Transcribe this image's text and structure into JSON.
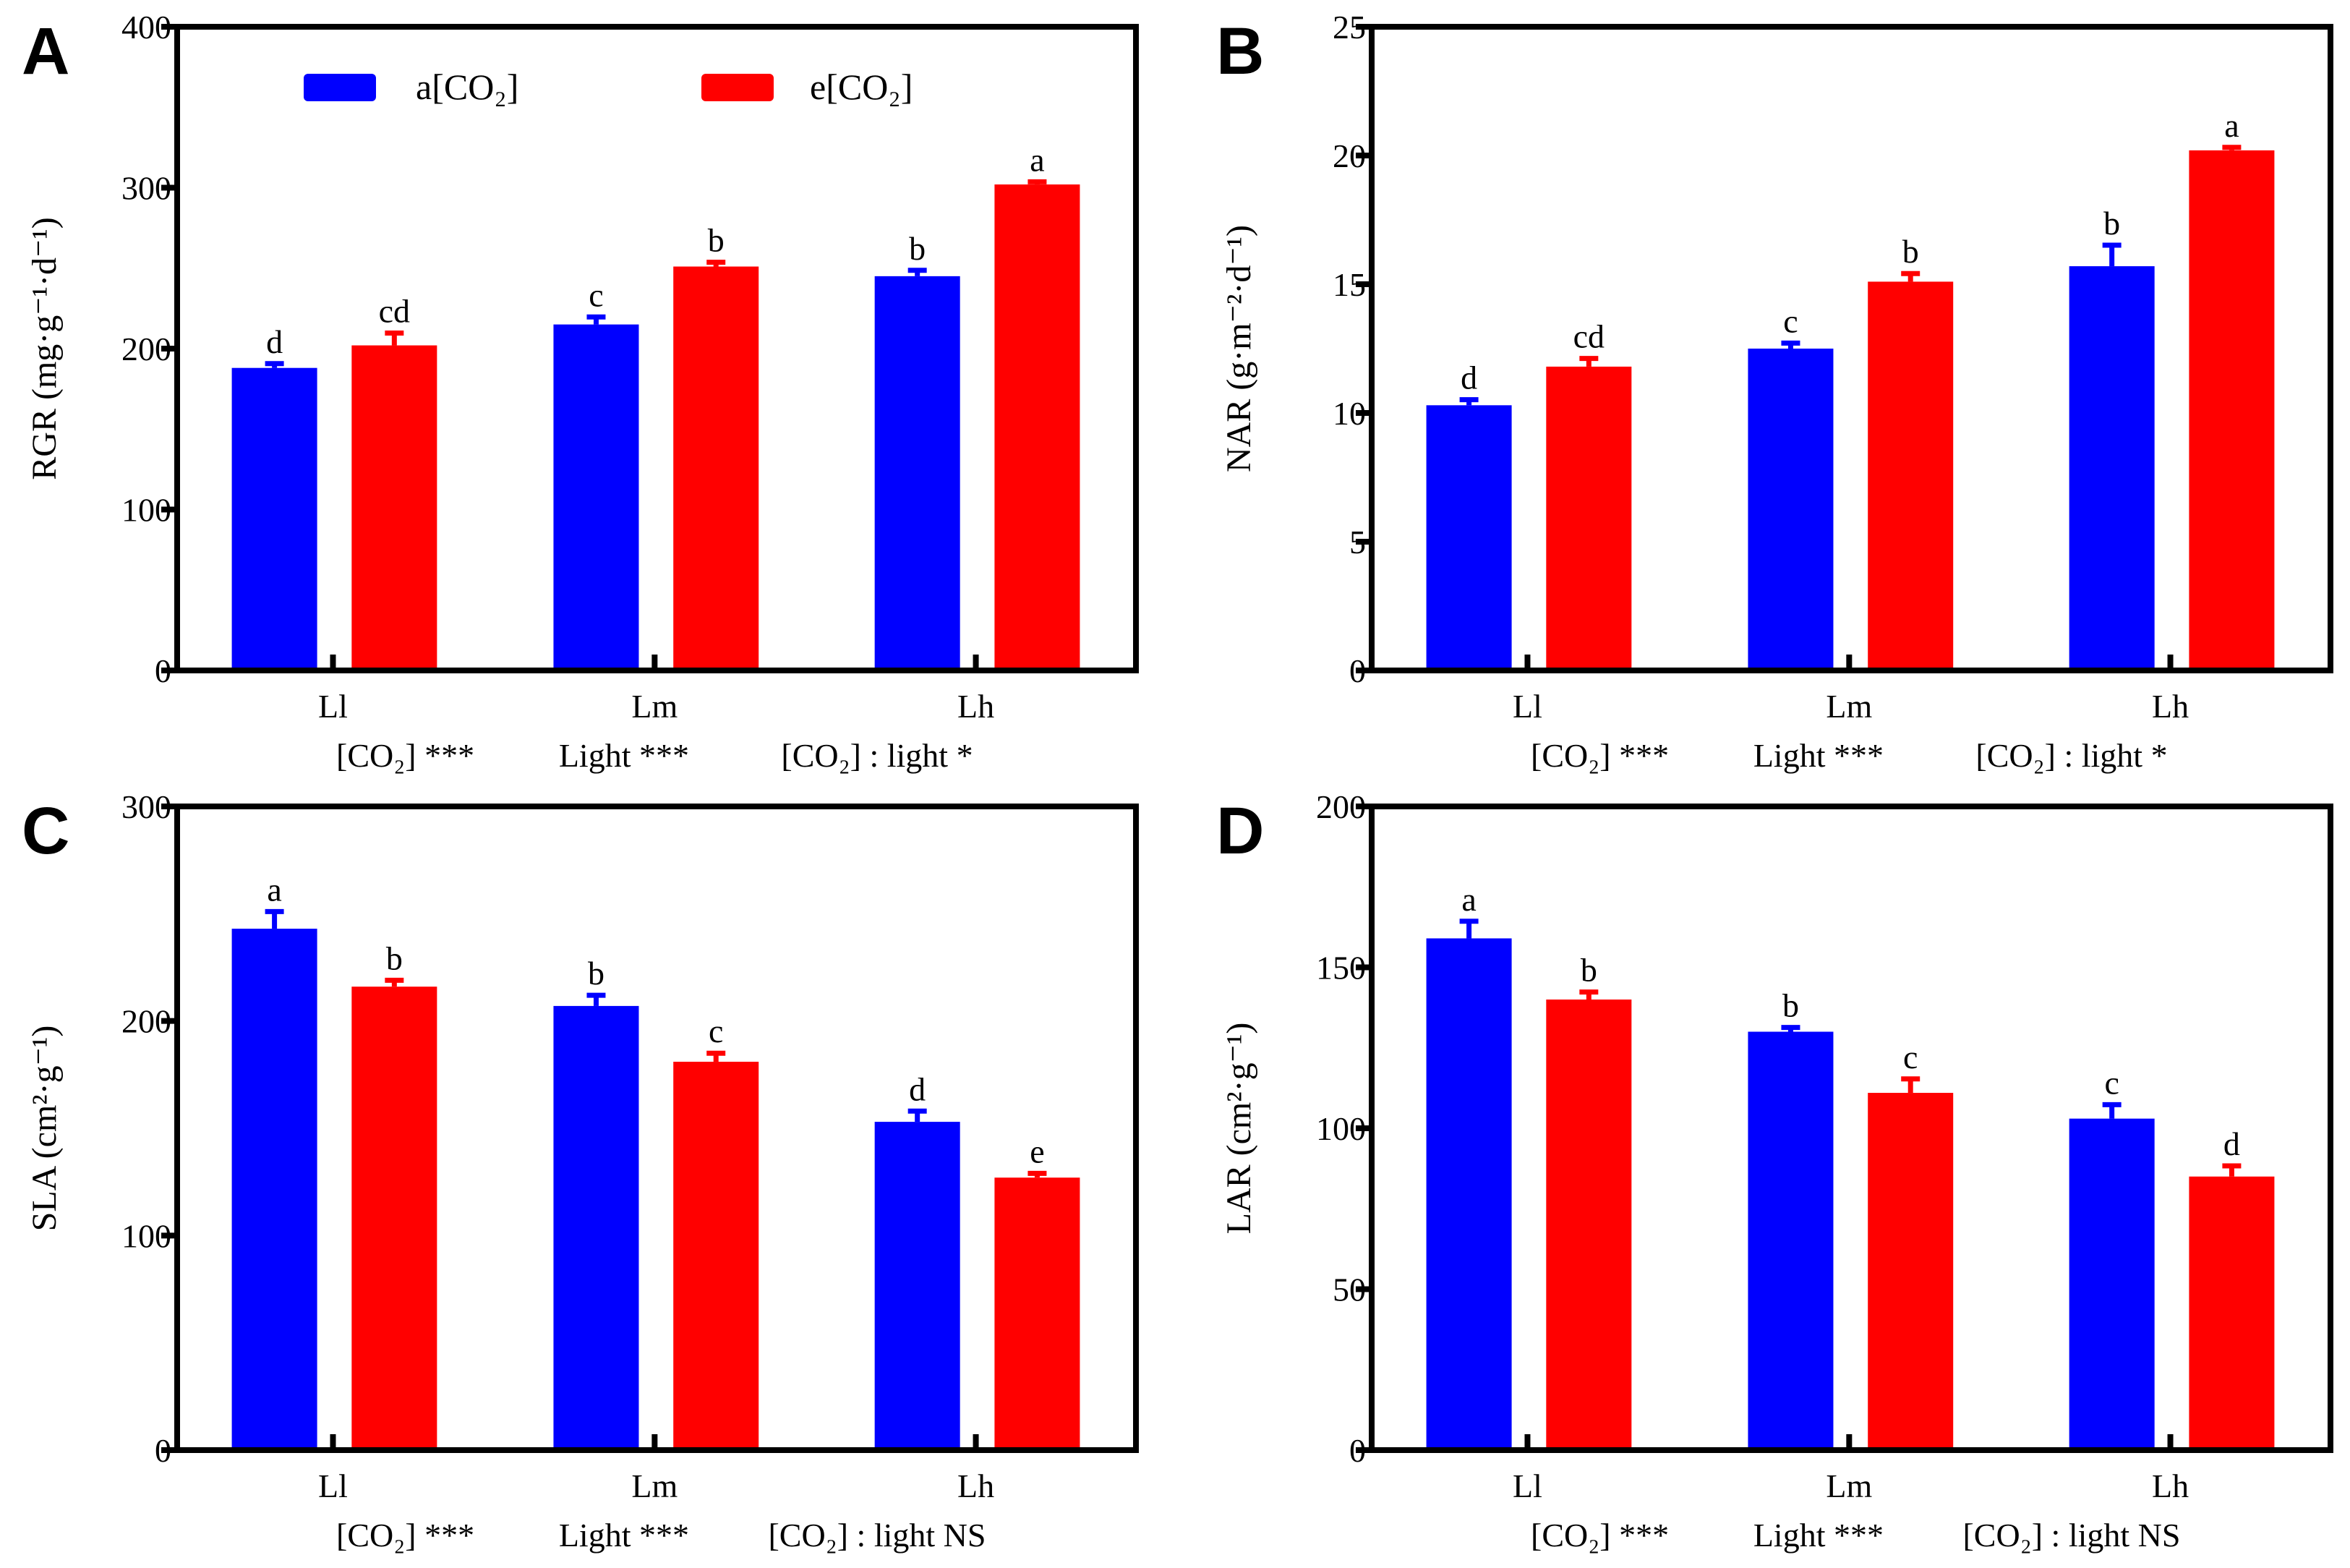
{
  "colors": {
    "ambient": "#0000ff",
    "elevated": "#ff0000",
    "axis": "#000000"
  },
  "legend": [
    {
      "label": "a[CO₂]",
      "color": "#0000ff"
    },
    {
      "label": "e[CO₂]",
      "color": "#ff0000"
    }
  ],
  "chart_data": [
    {
      "type": "bar",
      "panel": "A",
      "ylabel": "RGR (mg·g⁻¹·d⁻¹)",
      "categories": [
        "Ll",
        "Lm",
        "Lh"
      ],
      "ylim": [
        0,
        400
      ],
      "yticks": [
        0,
        100,
        200,
        300,
        400
      ],
      "series": [
        {
          "name": "a[CO₂]",
          "values": [
            188,
            215,
            245
          ],
          "errors": [
            4,
            6,
            5
          ],
          "letters": [
            "d",
            "c",
            "b"
          ]
        },
        {
          "name": "e[CO₂]",
          "values": [
            202,
            251,
            302
          ],
          "errors": [
            9,
            4,
            3
          ],
          "letters": [
            "cd",
            "b",
            "a"
          ]
        }
      ],
      "stats": [
        "[CO₂] ***",
        "Light ***",
        "[CO₂] : light *"
      ]
    },
    {
      "type": "bar",
      "panel": "B",
      "ylabel": "NAR (g·m⁻²·d⁻¹)",
      "categories": [
        "Ll",
        "Lm",
        "Lh"
      ],
      "ylim": [
        0,
        25
      ],
      "yticks": [
        0,
        5,
        10,
        15,
        20,
        25
      ],
      "series": [
        {
          "name": "a[CO₂]",
          "values": [
            10.3,
            12.5,
            15.7
          ],
          "errors": [
            0.3,
            0.3,
            0.9
          ],
          "letters": [
            "d",
            "c",
            "b"
          ]
        },
        {
          "name": "e[CO₂]",
          "values": [
            11.8,
            15.1,
            20.2
          ],
          "errors": [
            0.4,
            0.4,
            0.2
          ],
          "letters": [
            "cd",
            "b",
            "a"
          ]
        }
      ],
      "stats": [
        "[CO₂] ***",
        "Light ***",
        "[CO₂] : light *"
      ]
    },
    {
      "type": "bar",
      "panel": "C",
      "ylabel": "SLA (cm²·g⁻¹)",
      "categories": [
        "Ll",
        "Lm",
        "Lh"
      ],
      "ylim": [
        0,
        300
      ],
      "yticks": [
        0,
        100,
        200,
        300
      ],
      "series": [
        {
          "name": "a[CO₂]",
          "values": [
            243,
            207,
            153
          ],
          "errors": [
            9,
            6,
            6
          ],
          "letters": [
            "a",
            "b",
            "d"
          ]
        },
        {
          "name": "e[CO₂]",
          "values": [
            216,
            181,
            127
          ],
          "errors": [
            4,
            5,
            3
          ],
          "letters": [
            "b",
            "c",
            "e"
          ]
        }
      ],
      "stats": [
        "[CO₂] ***",
        "Light ***",
        "[CO₂] : light NS"
      ]
    },
    {
      "type": "bar",
      "panel": "D",
      "ylabel": "LAR (cm²·g⁻¹)",
      "categories": [
        "Ll",
        "Lm",
        "Lh"
      ],
      "ylim": [
        0,
        200
      ],
      "yticks": [
        0,
        50,
        100,
        150,
        200
      ],
      "series": [
        {
          "name": "a[CO₂]",
          "values": [
            159,
            130,
            103
          ],
          "errors": [
            6,
            2,
            5
          ],
          "letters": [
            "a",
            "b",
            "c"
          ]
        },
        {
          "name": "e[CO₂]",
          "values": [
            140,
            111,
            85
          ],
          "errors": [
            3,
            5,
            4
          ],
          "letters": [
            "b",
            "c",
            "d"
          ]
        }
      ],
      "stats": [
        "[CO₂] ***",
        "Light ***",
        "[CO₂] : light NS"
      ]
    }
  ]
}
